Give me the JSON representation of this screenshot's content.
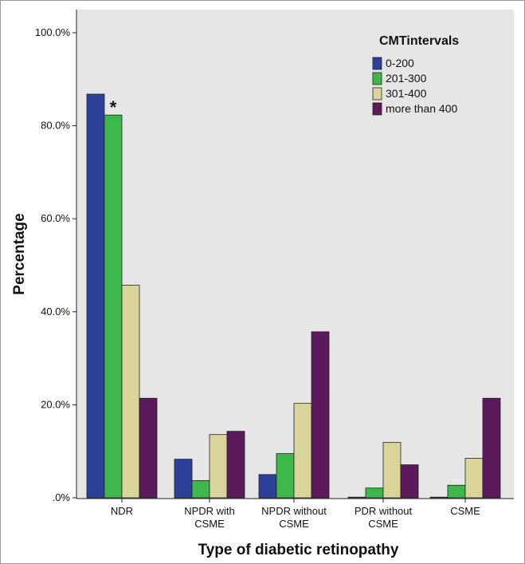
{
  "chart_data": {
    "type": "bar",
    "xlabel": "Type of diabetic retinopathy",
    "ylabel": "Percentage",
    "ylim": [
      0,
      100
    ],
    "yticks": [
      ".0%",
      "20.0%",
      "40.0%",
      "60.0%",
      "80.0%",
      "100.0%"
    ],
    "ytick_values": [
      0,
      20,
      40,
      60,
      80,
      100
    ],
    "categories": [
      [
        "NDR"
      ],
      [
        "NPDR with",
        "CSME"
      ],
      [
        "NPDR without",
        "CSME"
      ],
      [
        "PDR without",
        "CSME"
      ],
      [
        "CSME"
      ]
    ],
    "legend": {
      "title": "CMTintervals",
      "placement": "top-right"
    },
    "series": [
      {
        "name": "0-200",
        "color": "#2c3f99",
        "values": [
          86.8,
          8.3,
          5.0,
          0.0,
          0.0
        ]
      },
      {
        "name": "201-300",
        "color": "#3db84a",
        "values": [
          82.3,
          3.7,
          9.5,
          2.1,
          2.7
        ]
      },
      {
        "name": "301-400",
        "color": "#d9d49a",
        "values": [
          45.7,
          13.6,
          20.3,
          11.9,
          8.5
        ]
      },
      {
        "name": "more than 400",
        "color": "#5c1a5c",
        "values": [
          21.4,
          14.3,
          35.7,
          7.1,
          21.4
        ]
      }
    ],
    "annotations": [
      {
        "text": "*",
        "category_index": 0,
        "series_index": 1
      }
    ],
    "grid": false,
    "plot_background": "#e6e6e6"
  }
}
